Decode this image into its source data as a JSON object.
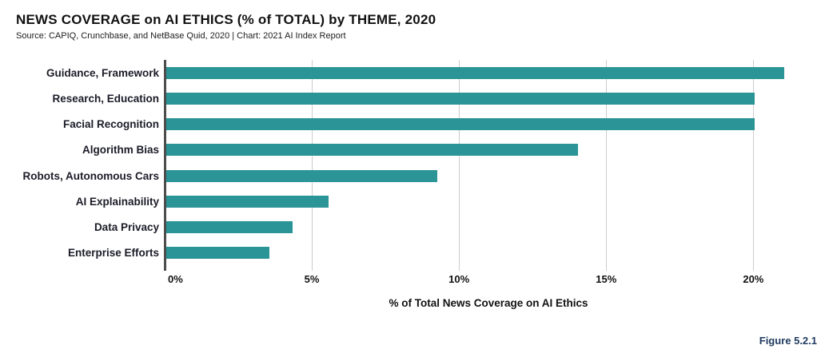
{
  "header": {
    "title": "NEWS COVERAGE on AI ETHICS (% of TOTAL) by THEME, 2020",
    "subtitle": "Source: CAPIQ, Crunchbase, and NetBase Quid, 2020 | Chart: 2021 AI Index Report"
  },
  "figure_label": "Figure 5.2.1",
  "chart_data": {
    "type": "bar",
    "orientation": "horizontal",
    "title": "NEWS COVERAGE on AI ETHICS (% of TOTAL) by THEME, 2020",
    "subtitle": "Source: CAPIQ, Crunchbase, and NetBase Quid, 2020 | Chart: 2021 AI Index Report",
    "categories": [
      "Guidance, Framework",
      "Research, Education",
      "Facial Recognition",
      "Algorithm Bias",
      "Robots, Autonomous Cars",
      "AI Explainability",
      "Data Privacy",
      "Enterprise Efforts"
    ],
    "values": [
      21,
      20,
      20,
      14,
      9.2,
      5.5,
      4.3,
      3.5
    ],
    "xlabel": "% of Total News Coverage on AI Ethics",
    "ylabel": "",
    "xlim": [
      0,
      22
    ],
    "xticks": [
      "0%",
      "5%",
      "10%",
      "15%",
      "20%"
    ],
    "xtick_values": [
      0,
      5,
      10,
      15,
      20
    ],
    "grid": true,
    "legend": "none"
  },
  "colors": {
    "bar": "#2A9496",
    "axis_line": "#4d4d4d",
    "gridline": "#cccccc",
    "figure_label": "#1E3A5F"
  }
}
